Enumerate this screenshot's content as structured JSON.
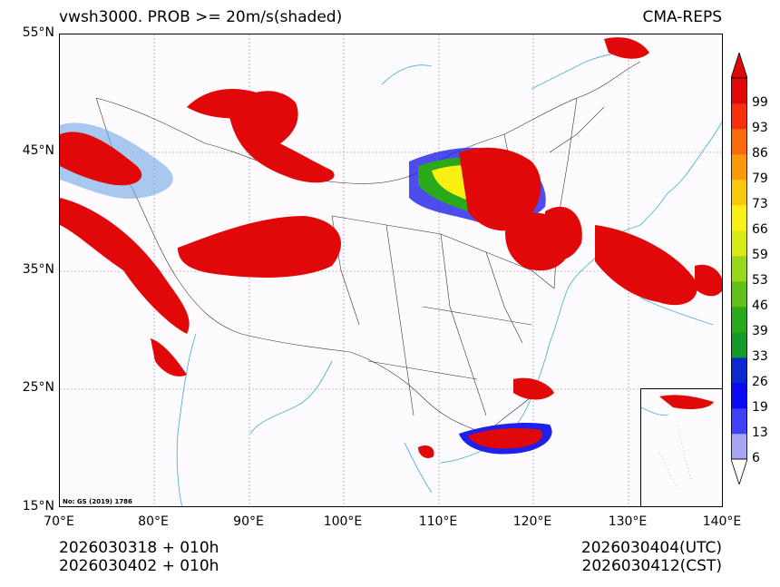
{
  "header": {
    "title": "vwsh3000. PROB >= 20m/s(shaded)",
    "source": "CMA-REPS"
  },
  "map": {
    "lat_labels": [
      "55°N",
      "45°N",
      "35°N",
      "25°N",
      "15°N"
    ],
    "lon_labels": [
      "70°E",
      "80°E",
      "90°E",
      "100°E",
      "110°E",
      "120°E",
      "130°E",
      "140°E"
    ],
    "approval_number": "No: GS (2019) 1786",
    "extent": {
      "lon": [
        70,
        140
      ],
      "lat": [
        15,
        55
      ]
    },
    "colors": {
      "background": "#fdfbfd",
      "coast": "#4fb3d9",
      "border": "#333333",
      "grid": "#888888"
    }
  },
  "footer": {
    "init_utc": "2026030318  +  010h",
    "init_cst": "2026030402  +  010h",
    "valid_utc": "2026030404(UTC)",
    "valid_cst": "2026030412(CST)"
  },
  "colorbar": {
    "levels": [
      "6",
      "13",
      "19",
      "26",
      "33",
      "39",
      "46",
      "53",
      "59",
      "66",
      "73",
      "79",
      "86",
      "93",
      "99"
    ],
    "colors": [
      "#a6a6f2",
      "#4040f5",
      "#0a0af0",
      "#0a2ad0",
      "#149a2a",
      "#2aaa1a",
      "#62c21a",
      "#9ad61a",
      "#d8ea16",
      "#faf014",
      "#f8c80e",
      "#f89a0a",
      "#f86a0a",
      "#f5300a",
      "#e00808"
    ]
  }
}
